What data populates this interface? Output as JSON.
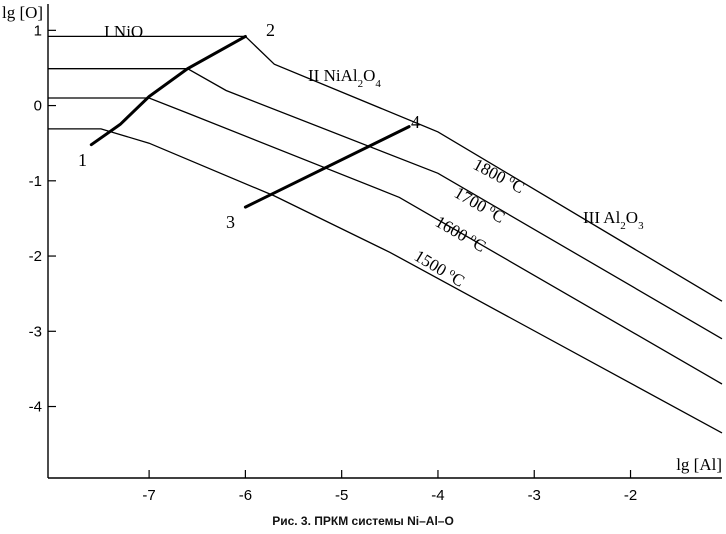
{
  "chart_data": {
    "type": "line",
    "xlabel": "lg [Al]",
    "ylabel": "lg [O]",
    "xlim": [
      -8.05,
      -1.05
    ],
    "ylim": [
      -4.95,
      1.35
    ],
    "x_ticks": [
      -7,
      -6,
      -5,
      -4,
      -3,
      -2
    ],
    "y_ticks": [
      1,
      0,
      -1,
      -2,
      -3,
      -4
    ],
    "grid": false,
    "isotherms": [
      {
        "label": "1800 °C",
        "temp": "1800",
        "points": [
          [
            -8.05,
            0.92
          ],
          [
            -6.0,
            0.92
          ],
          [
            -5.7,
            0.55
          ],
          [
            -4.0,
            -0.35
          ],
          [
            -1.05,
            -2.6
          ]
        ]
      },
      {
        "label": "1700 °C",
        "temp": "1700",
        "points": [
          [
            -8.05,
            0.49
          ],
          [
            -6.6,
            0.49
          ],
          [
            -6.2,
            0.2
          ],
          [
            -4.0,
            -0.9
          ],
          [
            -1.05,
            -3.1
          ]
        ]
      },
      {
        "label": "1600 °C",
        "temp": "1600",
        "points": [
          [
            -8.05,
            0.1
          ],
          [
            -7.0,
            0.1
          ],
          [
            -6.6,
            -0.1
          ],
          [
            -4.4,
            -1.22
          ],
          [
            -1.05,
            -3.7
          ]
        ]
      },
      {
        "label": "1500 °C",
        "temp": "1500",
        "points": [
          [
            -8.05,
            -0.31
          ],
          [
            -7.5,
            -0.31
          ],
          [
            -7.0,
            -0.5
          ],
          [
            -5.7,
            -1.2
          ],
          [
            -4.5,
            -1.95
          ],
          [
            -1.05,
            -4.35
          ]
        ]
      }
    ],
    "phase_boundary_1_2": {
      "points": [
        [
          -7.6,
          -0.52
        ],
        [
          -7.3,
          -0.25
        ],
        [
          -7.0,
          0.12
        ],
        [
          -6.6,
          0.49
        ],
        [
          -6.0,
          0.92
        ]
      ],
      "start_label": "1",
      "end_label": "2"
    },
    "line_3_4": {
      "points": [
        [
          -6.0,
          -1.35
        ],
        [
          -4.3,
          -0.28
        ]
      ],
      "start_label": "3",
      "end_label": "4"
    },
    "regions": [
      {
        "roman": "I",
        "formula": [
          {
            "t": "NiO"
          }
        ]
      },
      {
        "roman": "II",
        "formula": [
          {
            "t": "NiAl"
          },
          {
            "t": "2",
            "sub": true
          },
          {
            "t": "O"
          },
          {
            "t": "4",
            "sub": true
          }
        ]
      },
      {
        "roman": "III",
        "formula": [
          {
            "t": "Al"
          },
          {
            "t": "2",
            "sub": true
          },
          {
            "t": "O"
          },
          {
            "t": "3",
            "sub": true
          }
        ]
      }
    ]
  },
  "caption": "Рис. 3. ПРКМ системы Ni–Al–O"
}
